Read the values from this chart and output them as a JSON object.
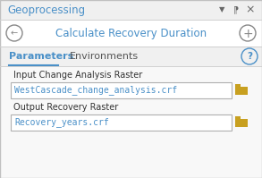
{
  "panel_bg": "#f0f0f0",
  "title_bar_bg": "#f0f0f0",
  "title_text": "Geoprocessing",
  "title_text_color": "#4a90c8",
  "title_icon_color": "#666666",
  "nav_bg": "#ffffff",
  "main_title": "Calculate Recovery Duration",
  "main_title_color": "#4a90c8",
  "nav_icon_color": "#888888",
  "tab1": "Parameters",
  "tab2": "Environments",
  "tab_active_color": "#4a90c8",
  "tab_inactive_color": "#555555",
  "tab_underline_color": "#4a90c8",
  "help_color": "#4a90c8",
  "content_bg": "#f8f8f8",
  "label1": "Input Change Analysis Raster",
  "label2": "Output Recovery Raster",
  "label_color": "#333333",
  "field1": "WestCascade_change_analysis.crf",
  "field2": "Recovery_years.crf",
  "field_text_color": "#4a90c8",
  "field_bg": "#ffffff",
  "field_border": "#b0b0b0",
  "folder_body": "#c8a020",
  "folder_tab": "#c8a020",
  "border_color": "#c0c0c0",
  "separator_color": "#d0d0d0"
}
